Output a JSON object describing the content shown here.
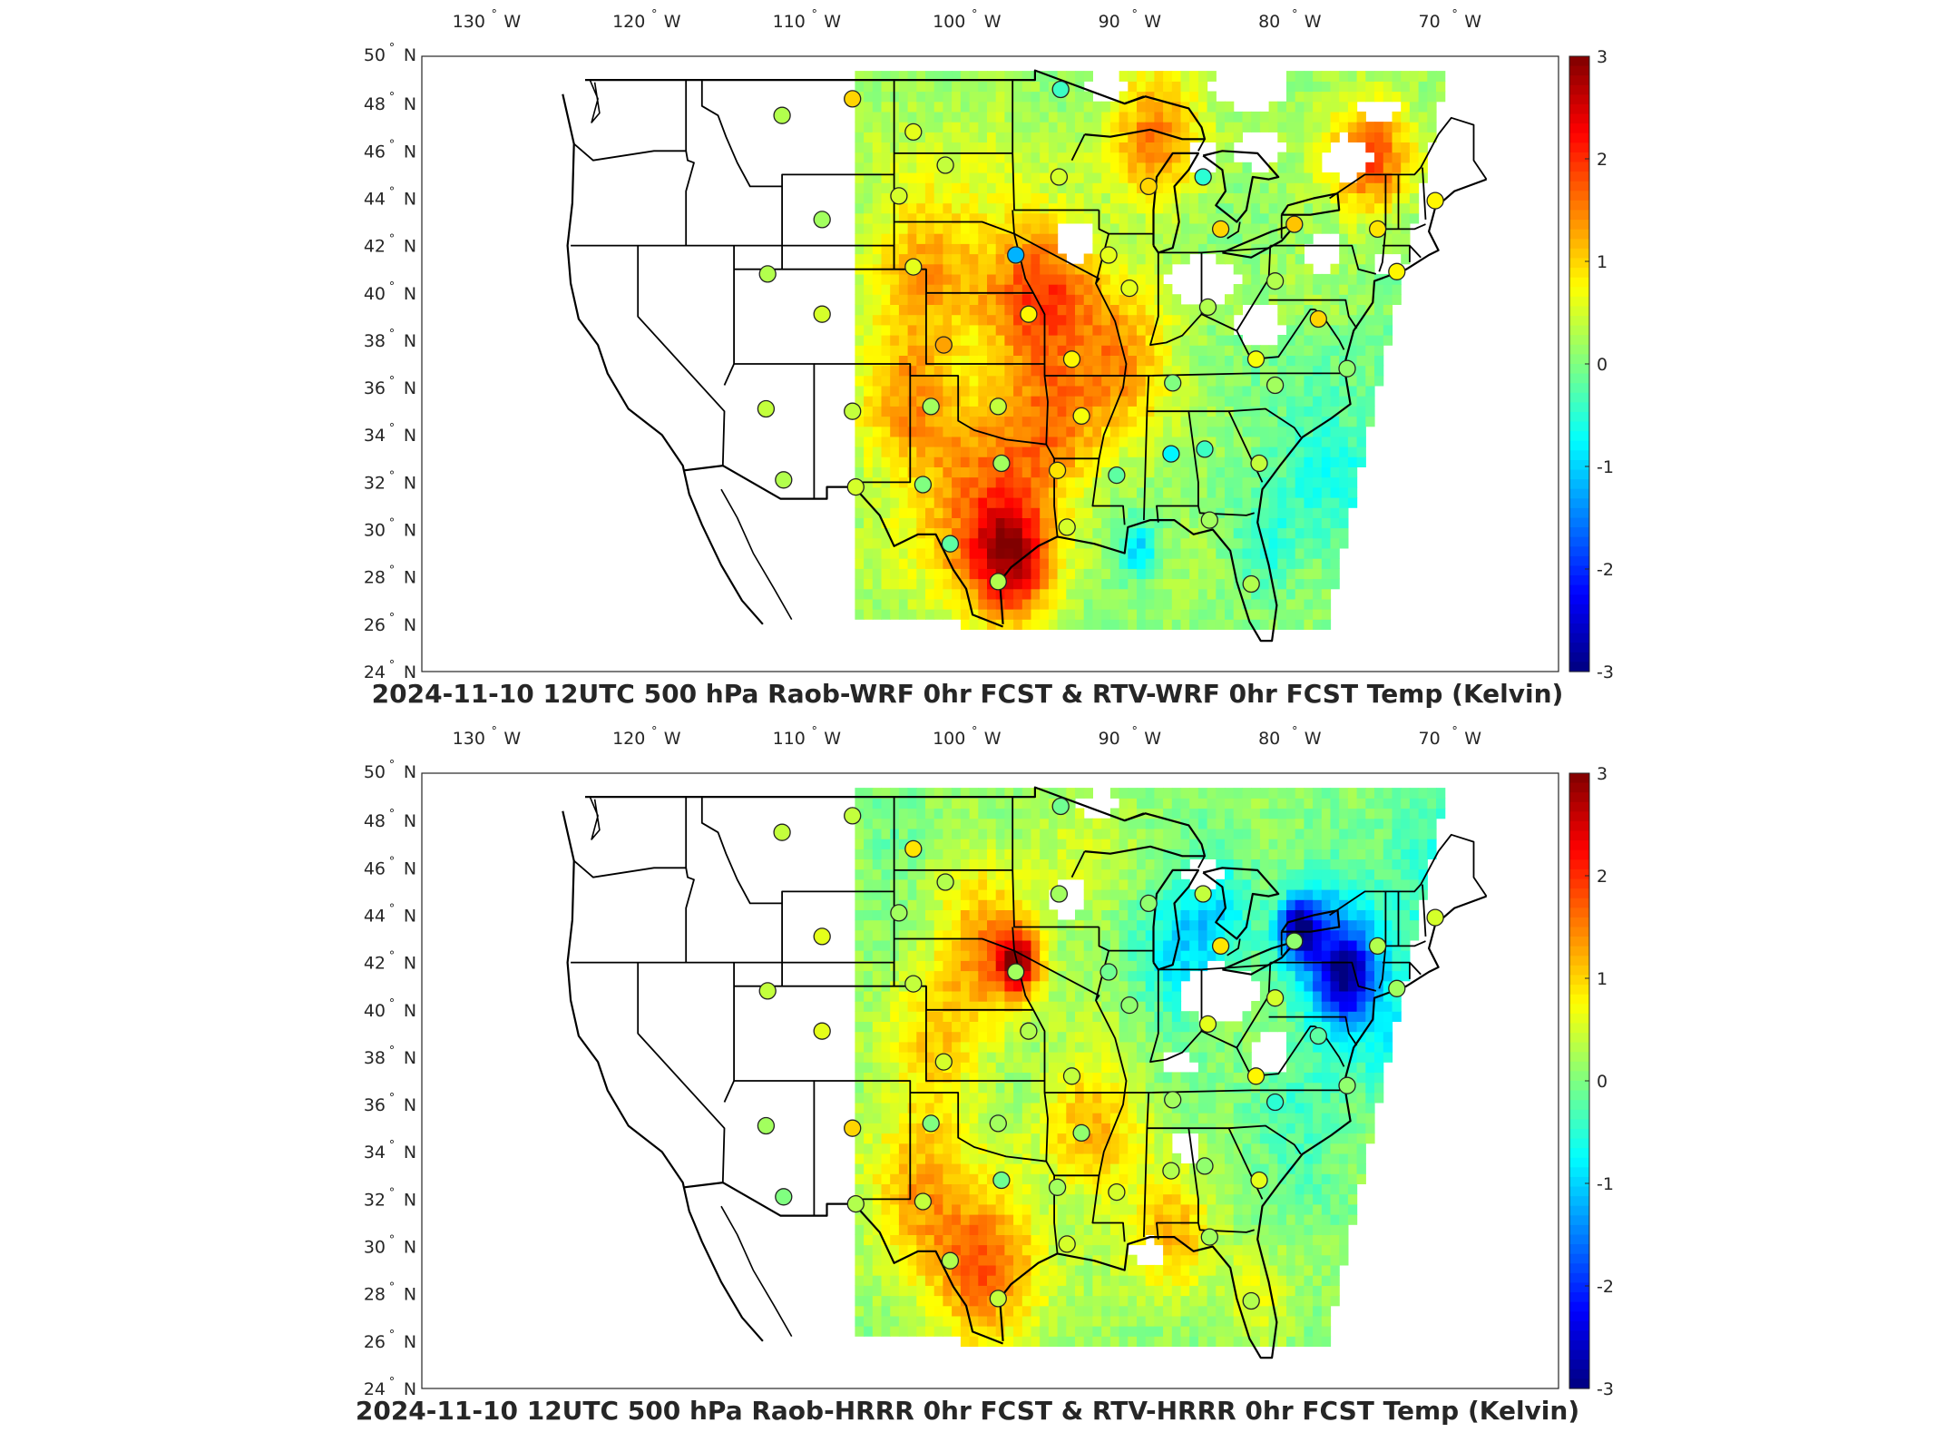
{
  "panels": [
    {
      "title": "2024-11-10 12UTC 500 hPa Raob-WRF 0hr FCST & RTV-WRF 0hr FCST Temp (Kelvin)",
      "stations": [
        {
          "lon": -111.0,
          "lat": 47.5,
          "v": 0.3
        },
        {
          "lon": -106.6,
          "lat": 48.2,
          "v": 1.0
        },
        {
          "lon": -102.8,
          "lat": 46.8,
          "v": 0.6
        },
        {
          "lon": -100.8,
          "lat": 45.4,
          "v": 0.4
        },
        {
          "lon": -93.6,
          "lat": 48.6,
          "v": -0.4
        },
        {
          "lon": -93.7,
          "lat": 44.9,
          "v": 0.5
        },
        {
          "lon": -88.1,
          "lat": 44.5,
          "v": 1.0
        },
        {
          "lon": -84.7,
          "lat": 44.9,
          "v": -0.5
        },
        {
          "lon": -103.7,
          "lat": 44.1,
          "v": 0.5
        },
        {
          "lon": -108.5,
          "lat": 43.1,
          "v": 0.2
        },
        {
          "lon": -111.9,
          "lat": 40.8,
          "v": 0.3
        },
        {
          "lon": -108.5,
          "lat": 39.1,
          "v": 0.5
        },
        {
          "lon": -102.8,
          "lat": 41.1,
          "v": 0.6
        },
        {
          "lon": -96.4,
          "lat": 41.6,
          "v": -1.2
        },
        {
          "lon": -90.6,
          "lat": 41.6,
          "v": 0.6
        },
        {
          "lon": -83.6,
          "lat": 42.7,
          "v": 1.0
        },
        {
          "lon": -79.0,
          "lat": 42.9,
          "v": 1.1
        },
        {
          "lon": -73.8,
          "lat": 42.7,
          "v": 0.9
        },
        {
          "lon": -70.2,
          "lat": 43.9,
          "v": 0.8
        },
        {
          "lon": -72.6,
          "lat": 40.9,
          "v": 0.8
        },
        {
          "lon": -77.5,
          "lat": 38.9,
          "v": 1.0
        },
        {
          "lon": -80.2,
          "lat": 40.5,
          "v": 0.3
        },
        {
          "lon": -84.4,
          "lat": 39.4,
          "v": 0.3
        },
        {
          "lon": -89.3,
          "lat": 40.2,
          "v": 0.6
        },
        {
          "lon": -95.6,
          "lat": 39.1,
          "v": 0.8
        },
        {
          "lon": -100.9,
          "lat": 37.8,
          "v": 1.3
        },
        {
          "lon": -92.9,
          "lat": 37.2,
          "v": 0.8
        },
        {
          "lon": -86.6,
          "lat": 36.2,
          "v": 0.0
        },
        {
          "lon": -81.4,
          "lat": 37.2,
          "v": 0.7
        },
        {
          "lon": -80.2,
          "lat": 36.1,
          "v": 0.2
        },
        {
          "lon": -75.7,
          "lat": 36.8,
          "v": 0.1
        },
        {
          "lon": -101.7,
          "lat": 35.2,
          "v": 0.2
        },
        {
          "lon": -97.5,
          "lat": 35.2,
          "v": 0.4
        },
        {
          "lon": -92.3,
          "lat": 34.8,
          "v": 0.7
        },
        {
          "lon": -106.6,
          "lat": 35.0,
          "v": 0.4
        },
        {
          "lon": -112.0,
          "lat": 35.1,
          "v": 0.4
        },
        {
          "lon": -110.9,
          "lat": 32.1,
          "v": 0.3
        },
        {
          "lon": -106.4,
          "lat": 31.8,
          "v": 0.5
        },
        {
          "lon": -102.2,
          "lat": 31.9,
          "v": 0.0
        },
        {
          "lon": -97.3,
          "lat": 32.8,
          "v": 0.2
        },
        {
          "lon": -93.8,
          "lat": 32.5,
          "v": 0.9
        },
        {
          "lon": -90.1,
          "lat": 32.3,
          "v": -0.2
        },
        {
          "lon": -86.7,
          "lat": 33.2,
          "v": -0.8
        },
        {
          "lon": -84.6,
          "lat": 33.4,
          "v": -0.4
        },
        {
          "lon": -81.2,
          "lat": 32.8,
          "v": 0.4
        },
        {
          "lon": -100.5,
          "lat": 29.4,
          "v": -0.2
        },
        {
          "lon": -97.5,
          "lat": 27.8,
          "v": 0.3
        },
        {
          "lon": -93.2,
          "lat": 30.1,
          "v": 0.5
        },
        {
          "lon": -84.3,
          "lat": 30.4,
          "v": 0.2
        },
        {
          "lon": -81.7,
          "lat": 27.7,
          "v": 0.3
        }
      ]
    },
    {
      "title": "2024-11-10 12UTC 500 hPa Raob-HRRR 0hr FCST & RTV-HRRR 0hr FCST Temp (Kelvin)",
      "stations": [
        {
          "lon": -111.0,
          "lat": 47.5,
          "v": 0.4
        },
        {
          "lon": -106.6,
          "lat": 48.2,
          "v": 0.4
        },
        {
          "lon": -102.8,
          "lat": 46.8,
          "v": 0.9
        },
        {
          "lon": -100.8,
          "lat": 45.4,
          "v": 0.3
        },
        {
          "lon": -93.6,
          "lat": 48.6,
          "v": -0.1
        },
        {
          "lon": -93.7,
          "lat": 44.9,
          "v": 0.2
        },
        {
          "lon": -88.1,
          "lat": 44.5,
          "v": 0.1
        },
        {
          "lon": -84.7,
          "lat": 44.9,
          "v": 0.4
        },
        {
          "lon": -103.7,
          "lat": 44.1,
          "v": 0.2
        },
        {
          "lon": -108.5,
          "lat": 43.1,
          "v": 0.6
        },
        {
          "lon": -111.9,
          "lat": 40.8,
          "v": 0.4
        },
        {
          "lon": -108.5,
          "lat": 39.1,
          "v": 0.6
        },
        {
          "lon": -102.8,
          "lat": 41.1,
          "v": 0.4
        },
        {
          "lon": -96.4,
          "lat": 41.6,
          "v": 0.2
        },
        {
          "lon": -90.6,
          "lat": 41.6,
          "v": -0.1
        },
        {
          "lon": -83.6,
          "lat": 42.7,
          "v": 0.9
        },
        {
          "lon": -79.0,
          "lat": 42.9,
          "v": 0.1
        },
        {
          "lon": -73.8,
          "lat": 42.7,
          "v": 0.3
        },
        {
          "lon": -70.2,
          "lat": 43.9,
          "v": 0.5
        },
        {
          "lon": -72.6,
          "lat": 40.9,
          "v": 0.2
        },
        {
          "lon": -77.5,
          "lat": 38.9,
          "v": -0.2
        },
        {
          "lon": -80.2,
          "lat": 40.5,
          "v": 0.5
        },
        {
          "lon": -84.4,
          "lat": 39.4,
          "v": 0.6
        },
        {
          "lon": -89.3,
          "lat": 40.2,
          "v": 0.1
        },
        {
          "lon": -95.6,
          "lat": 39.1,
          "v": 0.3
        },
        {
          "lon": -100.9,
          "lat": 37.8,
          "v": 0.5
        },
        {
          "lon": -92.9,
          "lat": 37.2,
          "v": 0.4
        },
        {
          "lon": -86.6,
          "lat": 36.2,
          "v": 0.2
        },
        {
          "lon": -81.4,
          "lat": 37.2,
          "v": 0.8
        },
        {
          "lon": -80.2,
          "lat": 36.1,
          "v": -0.5
        },
        {
          "lon": -75.7,
          "lat": 36.8,
          "v": 0.1
        },
        {
          "lon": -101.7,
          "lat": 35.2,
          "v": 0.0
        },
        {
          "lon": -97.5,
          "lat": 35.2,
          "v": 0.2
        },
        {
          "lon": -92.3,
          "lat": 34.8,
          "v": 0.1
        },
        {
          "lon": -106.6,
          "lat": 35.0,
          "v": 1.0
        },
        {
          "lon": -112.0,
          "lat": 35.1,
          "v": 0.2
        },
        {
          "lon": -110.9,
          "lat": 32.1,
          "v": 0.0
        },
        {
          "lon": -106.4,
          "lat": 31.8,
          "v": 0.3
        },
        {
          "lon": -102.2,
          "lat": 31.9,
          "v": 0.4
        },
        {
          "lon": -97.3,
          "lat": 32.8,
          "v": -0.1
        },
        {
          "lon": -93.8,
          "lat": 32.5,
          "v": 0.2
        },
        {
          "lon": -90.1,
          "lat": 32.3,
          "v": 0.5
        },
        {
          "lon": -86.7,
          "lat": 33.2,
          "v": 0.3
        },
        {
          "lon": -84.6,
          "lat": 33.4,
          "v": 0.1
        },
        {
          "lon": -81.2,
          "lat": 32.8,
          "v": 0.6
        },
        {
          "lon": -100.5,
          "lat": 29.4,
          "v": 0.3
        },
        {
          "lon": -97.5,
          "lat": 27.8,
          "v": 0.4
        },
        {
          "lon": -93.2,
          "lat": 30.1,
          "v": 0.5
        },
        {
          "lon": -84.3,
          "lat": 30.4,
          "v": 0.2
        },
        {
          "lon": -81.7,
          "lat": 27.7,
          "v": 0.3
        }
      ]
    }
  ],
  "lon_labels": [
    "130",
    "120",
    "110",
    "100",
    "90",
    "80",
    "70"
  ],
  "lon_values": [
    -130,
    -120,
    -110,
    -100,
    -90,
    -80,
    -70
  ],
  "lon_suffix": "W",
  "lat_labels": [
    "50",
    "48",
    "46",
    "44",
    "42",
    "40",
    "38",
    "36",
    "34",
    "32",
    "30",
    "28",
    "26",
    "24"
  ],
  "lat_values": [
    50,
    48,
    46,
    44,
    42,
    40,
    38,
    36,
    34,
    32,
    30,
    28,
    26,
    24
  ],
  "lat_suffix": "N",
  "degree_mark": "°",
  "colorbar": {
    "labels": [
      "3",
      "2",
      "1",
      "0",
      "-1",
      "-2",
      "-3"
    ],
    "range": [
      -3,
      3
    ],
    "colormap": "jet"
  }
}
